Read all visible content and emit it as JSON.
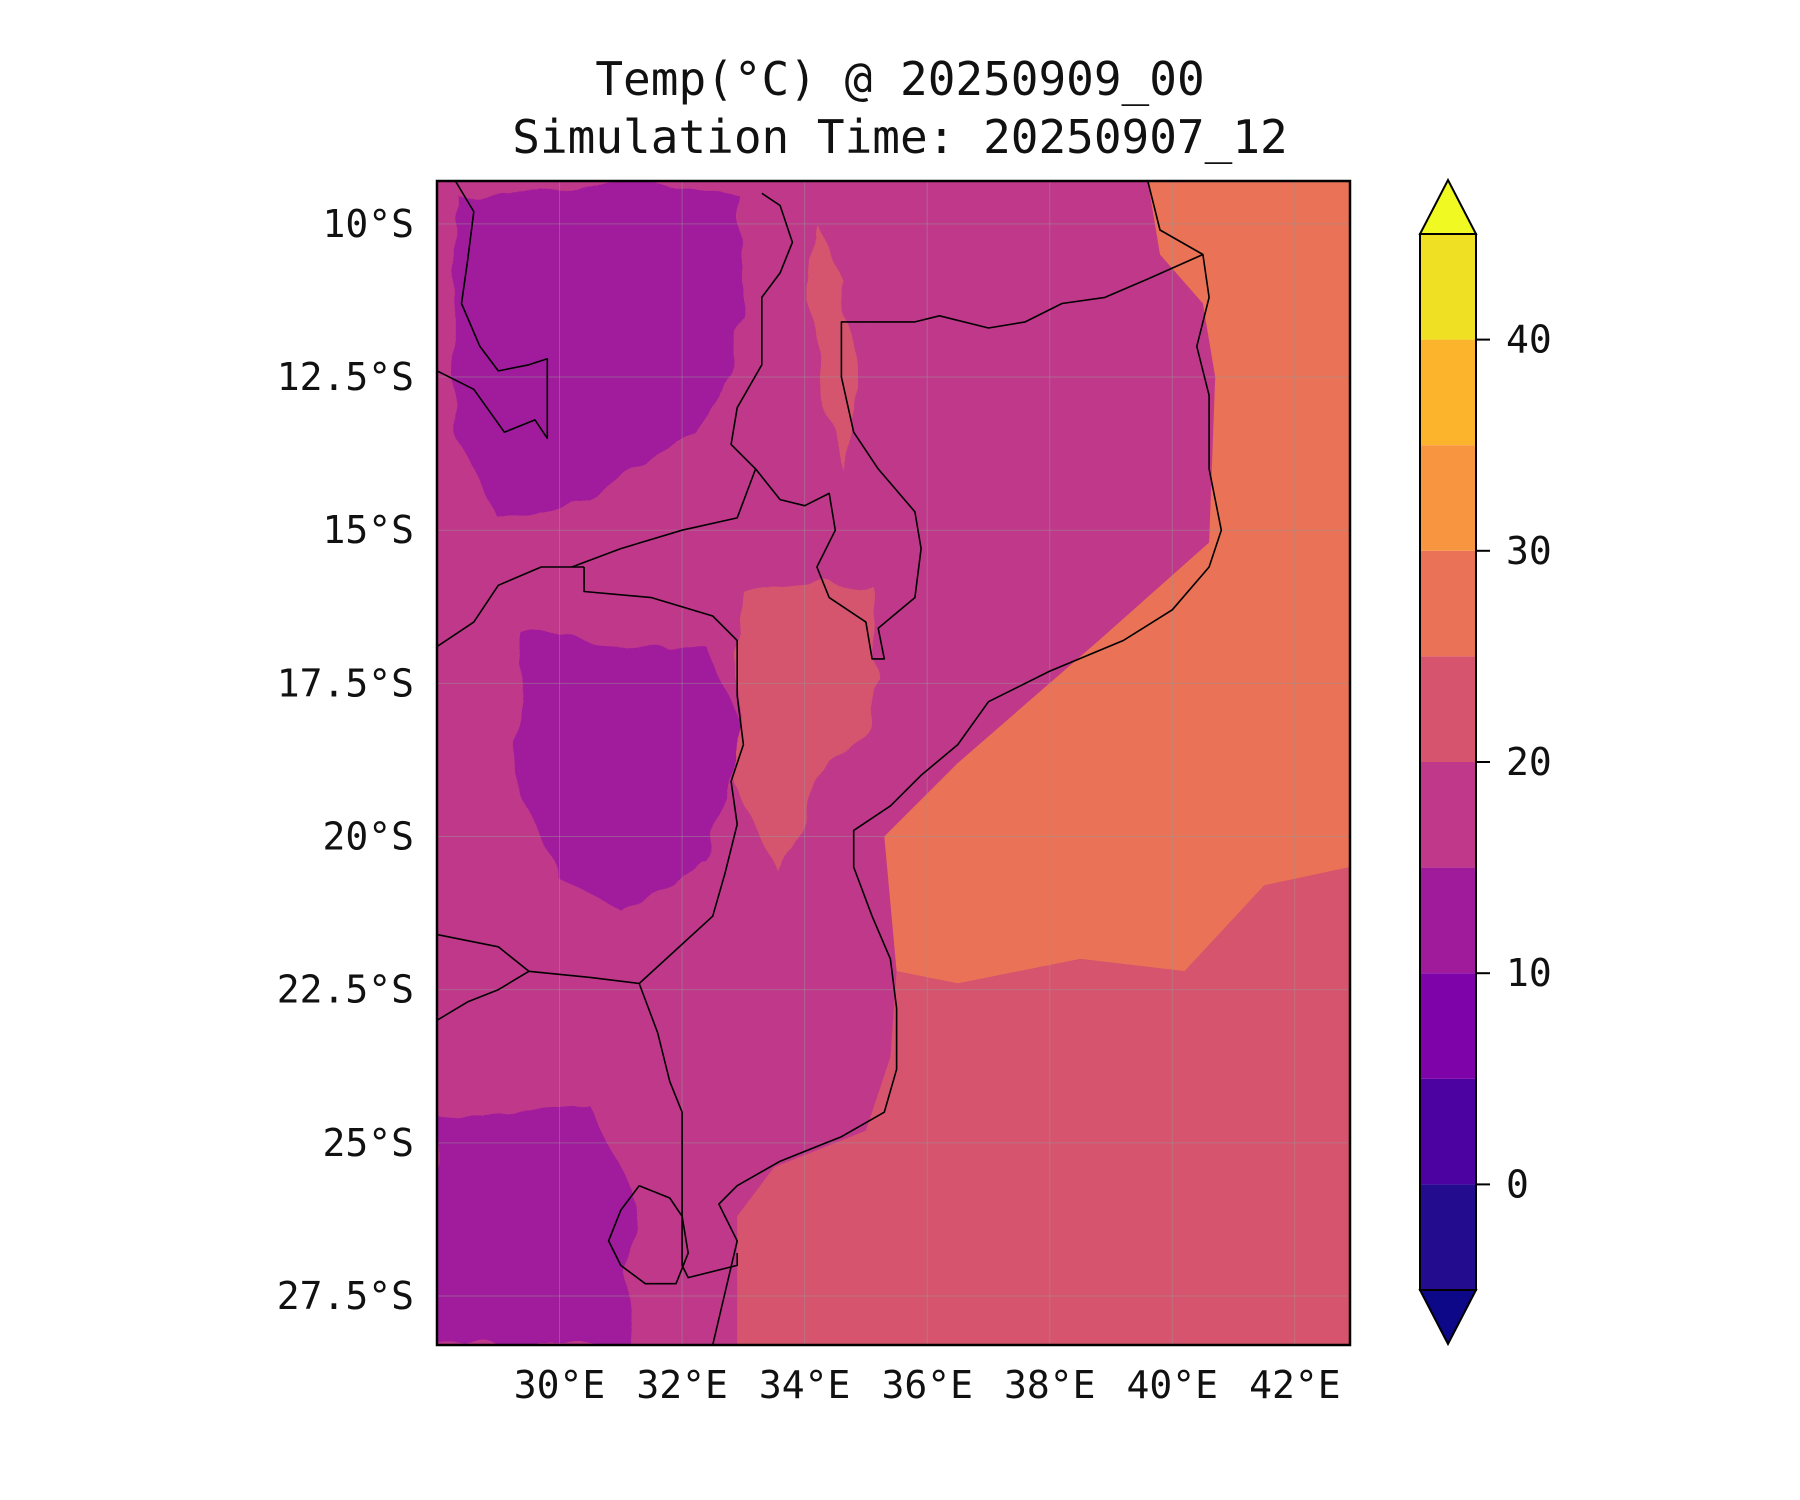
{
  "title": {
    "line1": "Temp(°C) @ 20250909_00",
    "line2": "Simulation Time: 20250907_12"
  },
  "chart_data": {
    "type": "heatmap",
    "variable_units": "°C",
    "xlim": [
      28.0,
      42.9
    ],
    "ylim": [
      -28.3,
      -9.3
    ],
    "x_ticks": [
      {
        "value": 30,
        "label": "30°E"
      },
      {
        "value": 32,
        "label": "32°E"
      },
      {
        "value": 34,
        "label": "34°E"
      },
      {
        "value": 36,
        "label": "36°E"
      },
      {
        "value": 38,
        "label": "38°E"
      },
      {
        "value": 40,
        "label": "40°E"
      },
      {
        "value": 42,
        "label": "42°E"
      }
    ],
    "y_ticks": [
      {
        "value": -10,
        "label": "10°S"
      },
      {
        "value": -12.5,
        "label": "12.5°S"
      },
      {
        "value": -15,
        "label": "15°S"
      },
      {
        "value": -17.5,
        "label": "17.5°S"
      },
      {
        "value": -20,
        "label": "20°S"
      },
      {
        "value": -22.5,
        "label": "22.5°S"
      },
      {
        "value": -25,
        "label": "25°S"
      },
      {
        "value": -27.5,
        "label": "27.5°S"
      }
    ],
    "grid": true,
    "colorbar": {
      "placement": "right",
      "extend": "both",
      "range": [
        -5,
        45
      ],
      "ticks": [
        {
          "value": 0,
          "label": "0"
        },
        {
          "value": 10,
          "label": "10"
        },
        {
          "value": 20,
          "label": "20"
        },
        {
          "value": 30,
          "label": "30"
        },
        {
          "value": 40,
          "label": "40"
        }
      ],
      "levels": [
        {
          "from": -5,
          "to": 0,
          "color": "#240c8f"
        },
        {
          "from": 0,
          "to": 5,
          "color": "#4c02a1"
        },
        {
          "from": 5,
          "to": 10,
          "color": "#7e03a8"
        },
        {
          "from": 10,
          "to": 15,
          "color": "#a01a9c"
        },
        {
          "from": 15,
          "to": 20,
          "color": "#c0388a"
        },
        {
          "from": 20,
          "to": 25,
          "color": "#d6546e"
        },
        {
          "from": 25,
          "to": 30,
          "color": "#e97257"
        },
        {
          "from": 30,
          "to": 35,
          "color": "#f89540"
        },
        {
          "from": 35,
          "to": 40,
          "color": "#fcb42c"
        },
        {
          "from": 40,
          "to": 45,
          "color": "#f0e024"
        }
      ],
      "under_color": "#0d0887",
      "over_color": "#f0f921"
    },
    "regions": [
      {
        "name": "ocean-north",
        "value": 27,
        "outline": [
          [
            39.6,
            -9.3
          ],
          [
            42.9,
            -9.3
          ],
          [
            42.9,
            -20.5
          ],
          [
            41.5,
            -20.8
          ],
          [
            40.2,
            -22.2
          ],
          [
            38.5,
            -22.0
          ],
          [
            36.5,
            -22.4
          ],
          [
            35.5,
            -22.2
          ],
          [
            35.3,
            -20.0
          ],
          [
            36.5,
            -18.8
          ],
          [
            38.8,
            -16.8
          ],
          [
            40.6,
            -15.2
          ],
          [
            40.7,
            -12.5
          ],
          [
            40.5,
            -11.3
          ],
          [
            39.8,
            -10.5
          ]
        ]
      },
      {
        "name": "ocean-patch-east",
        "value": 27,
        "outline": [
          [
            42.4,
            -22.3
          ],
          [
            42.9,
            -22.3
          ],
          [
            42.9,
            -24.6
          ],
          [
            42.5,
            -24.5
          ],
          [
            42.1,
            -23.3
          ]
        ]
      },
      {
        "name": "ocean-south",
        "value": 23,
        "outline": [
          [
            32.9,
            -28.3
          ],
          [
            42.9,
            -28.3
          ],
          [
            42.9,
            -20.5
          ],
          [
            41.5,
            -20.8
          ],
          [
            40.2,
            -22.2
          ],
          [
            38.5,
            -22.0
          ],
          [
            36.5,
            -22.4
          ],
          [
            35.5,
            -22.2
          ],
          [
            35.4,
            -23.6
          ],
          [
            35.0,
            -24.8
          ],
          [
            33.5,
            -25.4
          ],
          [
            32.9,
            -26.2
          ]
        ]
      },
      {
        "name": "zambia-highland",
        "value": 14,
        "outline": [
          [
            28.3,
            -9.5
          ],
          [
            31.5,
            -9.3
          ],
          [
            33.0,
            -9.6
          ],
          [
            33.0,
            -11.5
          ],
          [
            32.3,
            -13.5
          ],
          [
            30.5,
            -14.5
          ],
          [
            29.0,
            -14.8
          ],
          [
            28.3,
            -13.5
          ]
        ]
      },
      {
        "name": "north-moz-lowland",
        "value": 19,
        "outline": [
          [
            35.0,
            -11.6
          ],
          [
            37.5,
            -11.6
          ],
          [
            40.2,
            -11.0
          ],
          [
            40.4,
            -12.7
          ],
          [
            40.3,
            -14.8
          ],
          [
            38.5,
            -16.5
          ],
          [
            36.0,
            -17.0
          ],
          [
            35.5,
            -15.0
          ],
          [
            35.2,
            -13.0
          ]
        ]
      },
      {
        "name": "zimbabwe-plateau",
        "value": 13,
        "outline": [
          [
            29.5,
            -16.8
          ],
          [
            32.5,
            -17.0
          ],
          [
            32.9,
            -18.3
          ],
          [
            32.5,
            -20.5
          ],
          [
            31.0,
            -21.2
          ],
          [
            29.8,
            -20.5
          ],
          [
            29.3,
            -18.5
          ]
        ]
      },
      {
        "name": "central-moz",
        "value": 21,
        "outline": [
          [
            33.0,
            -16.0
          ],
          [
            35.0,
            -15.8
          ],
          [
            35.3,
            -17.5
          ],
          [
            34.3,
            -19.2
          ],
          [
            33.5,
            -20.5
          ],
          [
            32.8,
            -19.0
          ],
          [
            32.9,
            -17.0
          ]
        ]
      },
      {
        "name": "south-africa-cool",
        "value": 13,
        "outline": [
          [
            28.0,
            -24.6
          ],
          [
            30.5,
            -24.4
          ],
          [
            31.2,
            -25.8
          ],
          [
            31.0,
            -28.3
          ],
          [
            28.0,
            -28.3
          ]
        ]
      },
      {
        "name": "malawi-lake-warm",
        "value": 24,
        "outline": [
          [
            34.2,
            -10.0
          ],
          [
            34.7,
            -11.0
          ],
          [
            34.8,
            -13.0
          ],
          [
            34.6,
            -14.0
          ],
          [
            34.3,
            -12.8
          ],
          [
            34.1,
            -11.2
          ]
        ]
      }
    ],
    "borders": [
      {
        "name": "coastline",
        "points": [
          [
            39.6,
            -9.3
          ],
          [
            39.8,
            -10.1
          ],
          [
            40.5,
            -10.5
          ],
          [
            40.6,
            -11.2
          ],
          [
            40.4,
            -12.0
          ],
          [
            40.6,
            -12.8
          ],
          [
            40.6,
            -14.0
          ],
          [
            40.8,
            -15.0
          ],
          [
            40.6,
            -15.6
          ],
          [
            40.0,
            -16.3
          ],
          [
            39.2,
            -16.8
          ],
          [
            38.0,
            -17.3
          ],
          [
            37.0,
            -17.8
          ],
          [
            36.5,
            -18.5
          ],
          [
            35.9,
            -19.0
          ],
          [
            35.4,
            -19.5
          ],
          [
            34.8,
            -19.9
          ],
          [
            34.8,
            -20.5
          ],
          [
            35.1,
            -21.3
          ],
          [
            35.4,
            -22.0
          ],
          [
            35.5,
            -22.8
          ],
          [
            35.5,
            -23.8
          ],
          [
            35.3,
            -24.5
          ],
          [
            34.6,
            -24.9
          ],
          [
            33.6,
            -25.3
          ],
          [
            32.9,
            -25.7
          ],
          [
            32.6,
            -26.0
          ],
          [
            32.9,
            -26.6
          ],
          [
            32.5,
            -28.3
          ]
        ]
      },
      {
        "name": "tanzania-moz",
        "points": [
          [
            35.0,
            -11.6
          ],
          [
            35.8,
            -11.6
          ],
          [
            36.2,
            -11.5
          ],
          [
            37.0,
            -11.7
          ],
          [
            37.6,
            -11.6
          ],
          [
            38.2,
            -11.3
          ],
          [
            38.9,
            -11.2
          ],
          [
            39.6,
            -10.9
          ],
          [
            40.5,
            -10.5
          ]
        ]
      },
      {
        "name": "malawi-west",
        "points": [
          [
            33.3,
            -9.5
          ],
          [
            33.6,
            -9.7
          ],
          [
            33.8,
            -10.3
          ],
          [
            33.6,
            -10.8
          ],
          [
            33.3,
            -11.2
          ],
          [
            33.3,
            -12.3
          ],
          [
            32.9,
            -13.0
          ],
          [
            32.8,
            -13.6
          ],
          [
            33.2,
            -14.0
          ],
          [
            33.6,
            -14.5
          ],
          [
            34.0,
            -14.6
          ],
          [
            34.4,
            -14.4
          ],
          [
            34.5,
            -15.0
          ],
          [
            34.2,
            -15.6
          ],
          [
            34.4,
            -16.1
          ],
          [
            35.0,
            -16.5
          ],
          [
            35.1,
            -17.1
          ],
          [
            35.3,
            -17.1
          ],
          [
            35.2,
            -16.6
          ],
          [
            35.8,
            -16.1
          ],
          [
            35.9,
            -15.3
          ],
          [
            35.8,
            -14.7
          ],
          [
            35.2,
            -14.0
          ],
          [
            34.8,
            -13.4
          ],
          [
            34.6,
            -12.5
          ],
          [
            34.6,
            -11.6
          ],
          [
            35.0,
            -11.6
          ]
        ]
      },
      {
        "name": "zambia-moz-zim",
        "points": [
          [
            30.2,
            -15.6
          ],
          [
            31.0,
            -15.3
          ],
          [
            32.0,
            -15.0
          ],
          [
            32.9,
            -14.8
          ],
          [
            33.2,
            -14.0
          ]
        ]
      },
      {
        "name": "moz-zim-east",
        "points": [
          [
            30.4,
            -15.6
          ],
          [
            30.4,
            -16.0
          ],
          [
            31.5,
            -16.1
          ],
          [
            32.5,
            -16.4
          ],
          [
            32.9,
            -16.8
          ],
          [
            32.9,
            -17.7
          ],
          [
            33.0,
            -18.5
          ],
          [
            32.8,
            -19.1
          ],
          [
            32.9,
            -19.8
          ],
          [
            32.7,
            -20.6
          ],
          [
            32.5,
            -21.3
          ],
          [
            31.3,
            -22.4
          ]
        ]
      },
      {
        "name": "zambia-zim",
        "points": [
          [
            28.0,
            -16.9
          ],
          [
            28.6,
            -16.5
          ],
          [
            29.0,
            -15.9
          ],
          [
            29.7,
            -15.6
          ],
          [
            30.4,
            -15.6
          ]
        ]
      },
      {
        "name": "zambia-drc-west",
        "points": [
          [
            28.3,
            -9.3
          ],
          [
            28.6,
            -9.8
          ],
          [
            28.5,
            -10.6
          ],
          [
            28.4,
            -11.3
          ],
          [
            28.7,
            -12.0
          ],
          [
            29.0,
            -12.4
          ],
          [
            29.5,
            -12.3
          ],
          [
            29.8,
            -12.2
          ],
          [
            29.8,
            -13.5
          ],
          [
            29.6,
            -13.2
          ],
          [
            29.1,
            -13.4
          ],
          [
            28.6,
            -12.7
          ],
          [
            28.0,
            -12.4
          ]
        ]
      },
      {
        "name": "zim-sa-botswana",
        "points": [
          [
            28.0,
            -21.6
          ],
          [
            29.0,
            -21.8
          ],
          [
            29.5,
            -22.2
          ],
          [
            30.5,
            -22.3
          ],
          [
            31.3,
            -22.4
          ]
        ]
      },
      {
        "name": "sa-botswana",
        "points": [
          [
            28.0,
            -23.0
          ],
          [
            28.5,
            -22.7
          ],
          [
            29.0,
            -22.5
          ],
          [
            29.5,
            -22.2
          ]
        ]
      },
      {
        "name": "kruger-border",
        "points": [
          [
            31.3,
            -22.4
          ],
          [
            31.6,
            -23.2
          ],
          [
            31.8,
            -24.0
          ],
          [
            32.0,
            -24.5
          ],
          [
            32.0,
            -25.3
          ],
          [
            32.0,
            -26.2
          ],
          [
            32.0,
            -27.0
          ],
          [
            32.1,
            -27.2
          ],
          [
            32.9,
            -27.0
          ],
          [
            32.9,
            -26.8
          ]
        ]
      },
      {
        "name": "eswatini",
        "points": [
          [
            31.3,
            -25.7
          ],
          [
            31.8,
            -25.9
          ],
          [
            32.0,
            -26.2
          ],
          [
            32.1,
            -26.8
          ],
          [
            31.9,
            -27.3
          ],
          [
            31.4,
            -27.3
          ],
          [
            31.0,
            -27.0
          ],
          [
            30.8,
            -26.6
          ],
          [
            31.0,
            -26.1
          ],
          [
            31.3,
            -25.7
          ]
        ]
      }
    ]
  }
}
